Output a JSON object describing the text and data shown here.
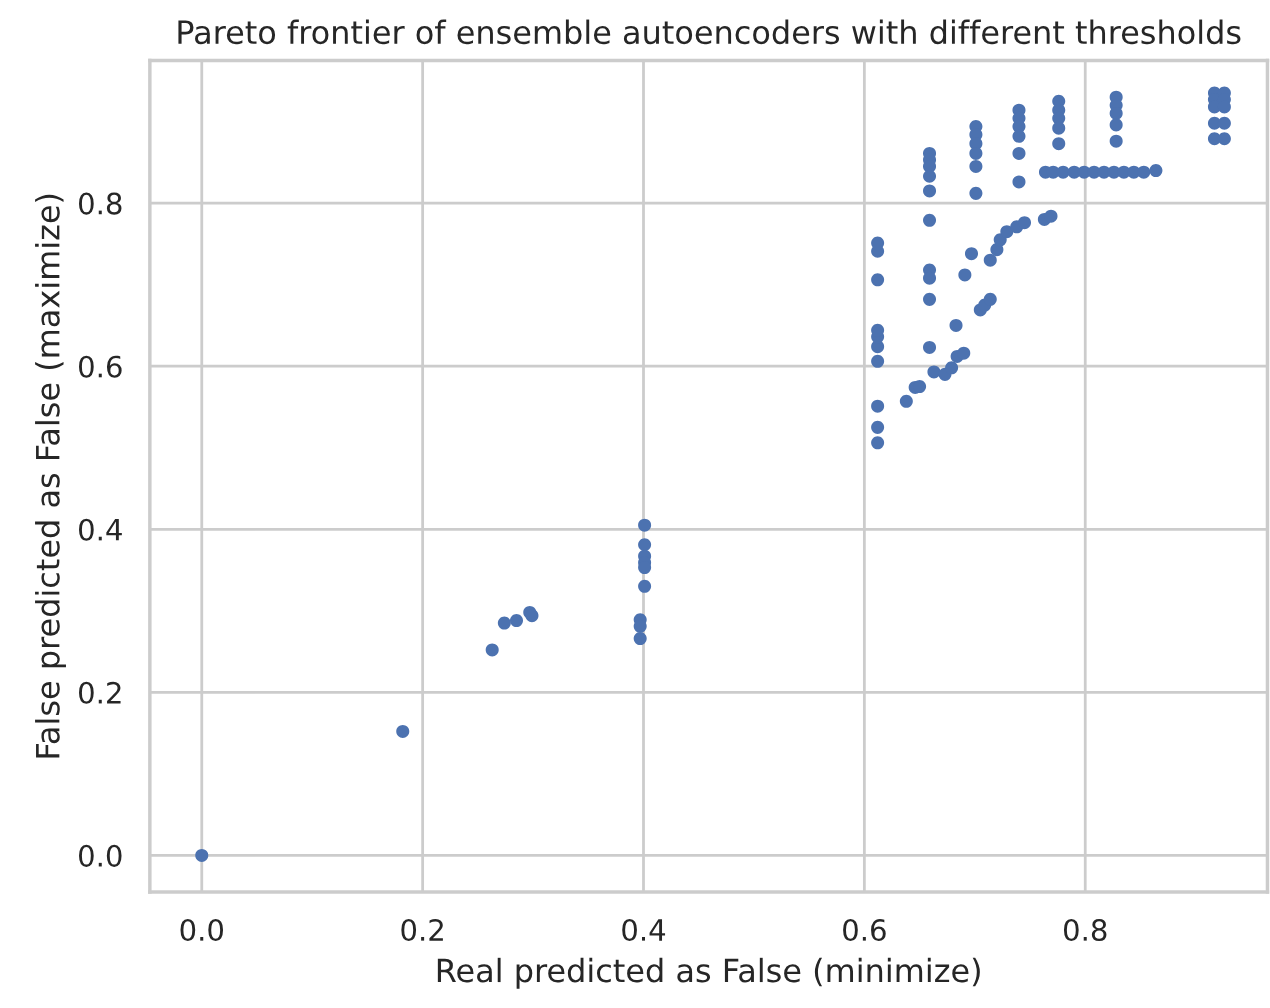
{
  "chart_data": {
    "type": "scatter",
    "title": "Pareto frontier of ensemble autoencoders with different thresholds",
    "xlabel": "Real predicted as False (minimize)",
    "ylabel": "False predicted as False (maximize)",
    "series": [
      {
        "color": "#4c72b0",
        "x": [
          0,
          0.182,
          0.263,
          0.274,
          0.285,
          0.297,
          0.299,
          0.401,
          0.401,
          0.401,
          0.401,
          0.401,
          0.401,
          0.397,
          0.397,
          0.397,
          0.612,
          0.612,
          0.612,
          0.612,
          0.612,
          0.612,
          0.612,
          0.612,
          0.612,
          0.612,
          0.659,
          0.659,
          0.659,
          0.659,
          0.659,
          0.659,
          0.659,
          0.659,
          0.659,
          0.659,
          0.701,
          0.701,
          0.701,
          0.701,
          0.701,
          0.701,
          0.74,
          0.74,
          0.74,
          0.74,
          0.74,
          0.74,
          0.776,
          0.776,
          0.776,
          0.776,
          0.776,
          0.828,
          0.828,
          0.828,
          0.828,
          0.828,
          0.917,
          0.917,
          0.917,
          0.917,
          0.917,
          0.926,
          0.926,
          0.926,
          0.926,
          0.926,
          0.764,
          0.771,
          0.78,
          0.79,
          0.799,
          0.808,
          0.817,
          0.826,
          0.835,
          0.844,
          0.853,
          0.864,
          0.638,
          0.646,
          0.65,
          0.663,
          0.673,
          0.679,
          0.684,
          0.69,
          0.683,
          0.705,
          0.709,
          0.714,
          0.691,
          0.697,
          0.714,
          0.72,
          0.723,
          0.729,
          0.738,
          0.745,
          0.763,
          0.769
        ],
        "values": [
          0,
          0.152,
          0.252,
          0.285,
          0.288,
          0.298,
          0.294,
          0.405,
          0.381,
          0.367,
          0.359,
          0.353,
          0.33,
          0.289,
          0.281,
          0.266,
          0.506,
          0.525,
          0.551,
          0.606,
          0.624,
          0.636,
          0.644,
          0.706,
          0.741,
          0.751,
          0.861,
          0.853,
          0.845,
          0.833,
          0.815,
          0.779,
          0.718,
          0.708,
          0.682,
          0.623,
          0.894,
          0.884,
          0.873,
          0.861,
          0.845,
          0.812,
          0.914,
          0.904,
          0.894,
          0.882,
          0.861,
          0.826,
          0.925,
          0.914,
          0.904,
          0.892,
          0.873,
          0.93,
          0.92,
          0.91,
          0.896,
          0.876,
          0.935,
          0.927,
          0.918,
          0.898,
          0.879,
          0.935,
          0.927,
          0.918,
          0.898,
          0.879,
          0.838,
          0.838,
          0.838,
          0.838,
          0.838,
          0.838,
          0.838,
          0.838,
          0.838,
          0.838,
          0.838,
          0.84,
          0.557,
          0.574,
          0.575,
          0.593,
          0.59,
          0.598,
          0.612,
          0.616,
          0.65,
          0.669,
          0.675,
          0.682,
          0.712,
          0.738,
          0.73,
          0.743,
          0.755,
          0.765,
          0.771,
          0.776,
          0.78,
          0.784
        ]
      }
    ],
    "xlim": [
      -0.047,
      0.965
    ],
    "ylim": [
      -0.045,
      0.975
    ],
    "xticks": [
      {
        "value": 0,
        "label": "0.0"
      },
      {
        "value": 0.2,
        "label": "0.2"
      },
      {
        "value": 0.4,
        "label": "0.4"
      },
      {
        "value": 0.6,
        "label": "0.6"
      },
      {
        "value": 0.8,
        "label": "0.8"
      }
    ],
    "yticks": [
      {
        "value": 0,
        "label": "0.0"
      },
      {
        "value": 0.2,
        "label": "0.2"
      },
      {
        "value": 0.4,
        "label": "0.4"
      },
      {
        "value": 0.6,
        "label": "0.6"
      },
      {
        "value": 0.8,
        "label": "0.8"
      }
    ],
    "grid": true,
    "marker": "circle"
  }
}
